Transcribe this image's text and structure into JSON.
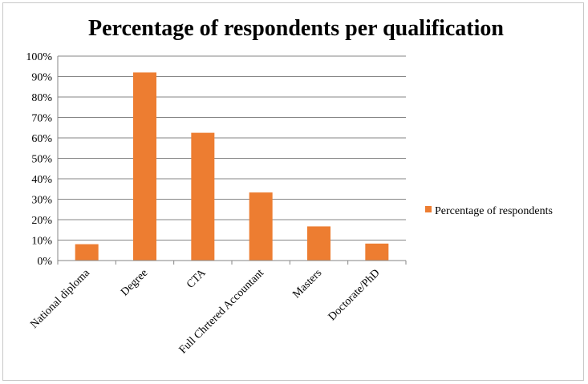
{
  "chart_data": {
    "type": "bar",
    "title": "Percentage of respondents per qualification",
    "categories": [
      "National diploma",
      "Degree",
      "CTA",
      "Full Chrtered Accountant",
      "Masters",
      "Doctorate/PhD"
    ],
    "series": [
      {
        "name": "Percentage of respondents",
        "values": [
          8,
          92,
          62.5,
          33.3,
          16.7,
          8.3
        ],
        "color": "#ED7D31"
      }
    ],
    "yticks": [
      "0%",
      "10%",
      "20%",
      "30%",
      "40%",
      "50%",
      "60%",
      "70%",
      "80%",
      "90%",
      "100%"
    ],
    "ylim": [
      0,
      100
    ],
    "grid": true,
    "legend_position": "right"
  }
}
